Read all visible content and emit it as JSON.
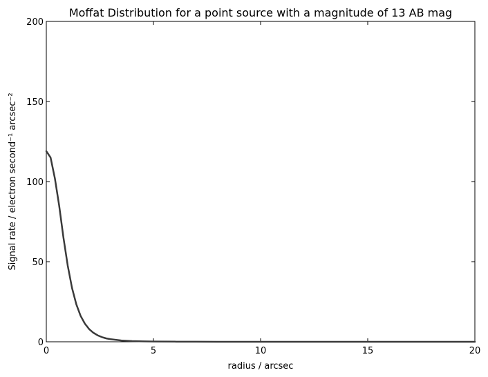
{
  "chart_data": {
    "type": "line",
    "title": "Moffat Distribution for a point source with a magnitude of 13 AB mag",
    "xlabel": "radius / arcsec",
    "ylabel": "Signal rate / electron second⁻¹ arcsec⁻²",
    "xlim": [
      0,
      20
    ],
    "ylim": [
      0,
      200
    ],
    "xticks": [
      0,
      5,
      10,
      15,
      20
    ],
    "yticks": [
      0,
      50,
      100,
      150,
      200
    ],
    "xtick_labels": [
      "0",
      "5",
      "10",
      "15",
      "20"
    ],
    "ytick_labels": [
      "0",
      "50",
      "100",
      "150",
      "200"
    ],
    "grid": false,
    "line_color": "#3a3a3a",
    "series": [
      {
        "x": [
          0,
          0.2,
          0.4,
          0.6,
          0.8,
          1.0,
          1.2,
          1.4,
          1.6,
          1.8,
          2.0,
          2.2,
          2.4,
          2.6,
          2.8,
          3.0,
          3.5,
          4.0,
          4.5,
          5.0,
          6.0,
          7.0,
          8.0,
          10.0,
          12.0,
          15.0,
          20.0
        ],
        "values": [
          119,
          115,
          102,
          85,
          65,
          47.5,
          33.6,
          23.4,
          16.2,
          11.3,
          7.9,
          5.6,
          4.0,
          2.9,
          2.1,
          1.6,
          0.8,
          0.45,
          0.27,
          0.17,
          0.08,
          0.04,
          0.02,
          0.01,
          0.005,
          0.002,
          0.001
        ]
      }
    ]
  }
}
